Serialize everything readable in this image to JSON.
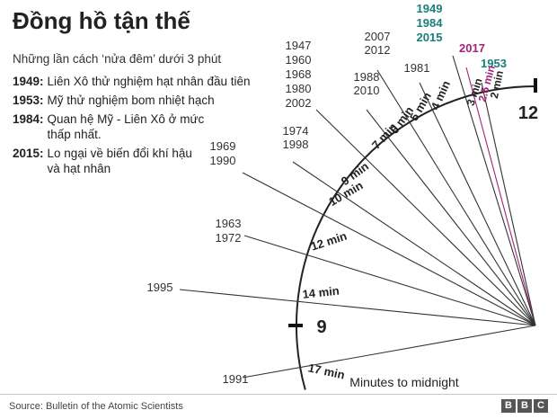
{
  "title": "Đồng hồ tận thế",
  "subtitle": "Những lần cách ‘nửa đêm’ dưới 3 phút",
  "events": [
    {
      "year": "1949:",
      "text": "Liên Xô thử nghiệm hạt nhân đầu tiên"
    },
    {
      "year": "1953:",
      "text": "Mỹ thử nghiệm bom nhiệt hạch"
    },
    {
      "year": "1984:",
      "text": "Quan hệ Mỹ - Liên Xô ở mức thấp nhất."
    },
    {
      "year": "2015:",
      "text": "Lo ngại về biến đổi khí hậu và hạt nhân"
    }
  ],
  "clock": {
    "label_12": "12",
    "label_9": "9",
    "caption": "Minutes to midnight",
    "minutes": [
      {
        "label": "2 min",
        "value": 2,
        "years": [
          "1953"
        ],
        "year_color": "#1a7f7a"
      },
      {
        "label": "2.5 min",
        "value": 2.5,
        "years": [
          "2017"
        ],
        "year_color": "#a3237a"
      },
      {
        "label": "3 min",
        "value": 3,
        "years": [
          "1949",
          "1984",
          "2015"
        ],
        "year_color": "#1a7f7a"
      },
      {
        "label": "4 min",
        "value": 4,
        "years": [
          "1981"
        ],
        "year_color": "#333333"
      },
      {
        "label": "5 min",
        "value": 5,
        "years": [
          "2007",
          "2012"
        ],
        "year_color": "#333333"
      },
      {
        "label": "6 min",
        "value": 6,
        "years": [
          "1988",
          "2010"
        ],
        "year_color": "#333333"
      },
      {
        "label": "7 min",
        "value": 7,
        "years": [
          "1947",
          "1960",
          "1968",
          "1980",
          "2002"
        ],
        "year_color": "#333333"
      },
      {
        "label": "9 min",
        "value": 9,
        "years": [
          "1974",
          "1998"
        ],
        "year_color": "#333333"
      },
      {
        "label": "10 min",
        "value": 10,
        "years": [
          "1969",
          "1990"
        ],
        "year_color": "#333333"
      },
      {
        "label": "12 min",
        "value": 12,
        "years": [
          "1963",
          "1972"
        ],
        "year_color": "#333333"
      },
      {
        "label": "14 min",
        "value": 14,
        "years": [
          "1995"
        ],
        "year_color": "#333333"
      },
      {
        "label": "17 min",
        "value": 17,
        "years": [
          "1991"
        ],
        "year_color": "#333333"
      }
    ]
  },
  "source": "Source: Bulletin of the Atomic Scientists",
  "logo": [
    "B",
    "B",
    "C"
  ]
}
